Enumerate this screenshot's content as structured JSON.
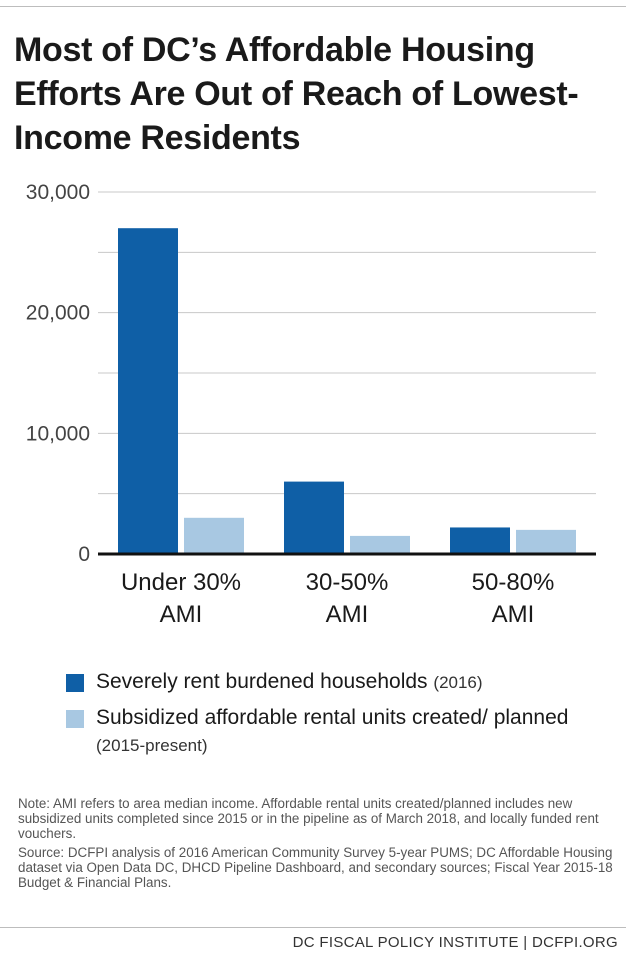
{
  "title": "Most of DC’s Affordable Housing Efforts Are Out of Reach of Lowest-Income Residents",
  "chart_data": {
    "type": "bar",
    "categories": [
      [
        "Under 30%",
        "AMI"
      ],
      [
        "30-50%",
        "AMI"
      ],
      [
        "50-80%",
        "AMI"
      ]
    ],
    "series": [
      {
        "name": "Severely rent burdened households",
        "note": "(2016)",
        "color": "#0f5fa6",
        "values": [
          27000,
          6000,
          2200
        ]
      },
      {
        "name": "Subsidized affordable rental units created/ planned",
        "note": "(2015-present)",
        "color": "#a8c8e2",
        "values": [
          3000,
          1500,
          2000
        ]
      }
    ],
    "ylim": [
      0,
      30000
    ],
    "yticks": [
      0,
      10000,
      20000,
      30000
    ],
    "ytick_labels": [
      "0",
      "10,000",
      "20,000",
      "30,000"
    ],
    "grid": true,
    "legend_placement": "bottom"
  },
  "legend": {
    "items": [
      {
        "label": "Severely rent burdened households",
        "note": "(2016)",
        "color": "#0f5fa6"
      },
      {
        "label": "Subsidized affordable rental units created/ planned",
        "note": "(2015-present)",
        "color": "#a8c8e2"
      }
    ]
  },
  "notes": {
    "note": "Note: AMI refers to area median income. Affordable rental units created/planned includes new subsidized units completed since 2015 or in the pipeline as of March 2018, and locally funded rent vouchers.",
    "source": "Source: DCFPI analysis of 2016 American Community Survey 5-year PUMS; DC Affordable Housing dataset via Open Data DC, DHCD Pipeline Dashboard, and secondary sources; Fiscal Year 2015-18 Budget & Financial Plans."
  },
  "footer": "DC FISCAL POLICY INSTITUTE | DCFPI.ORG"
}
